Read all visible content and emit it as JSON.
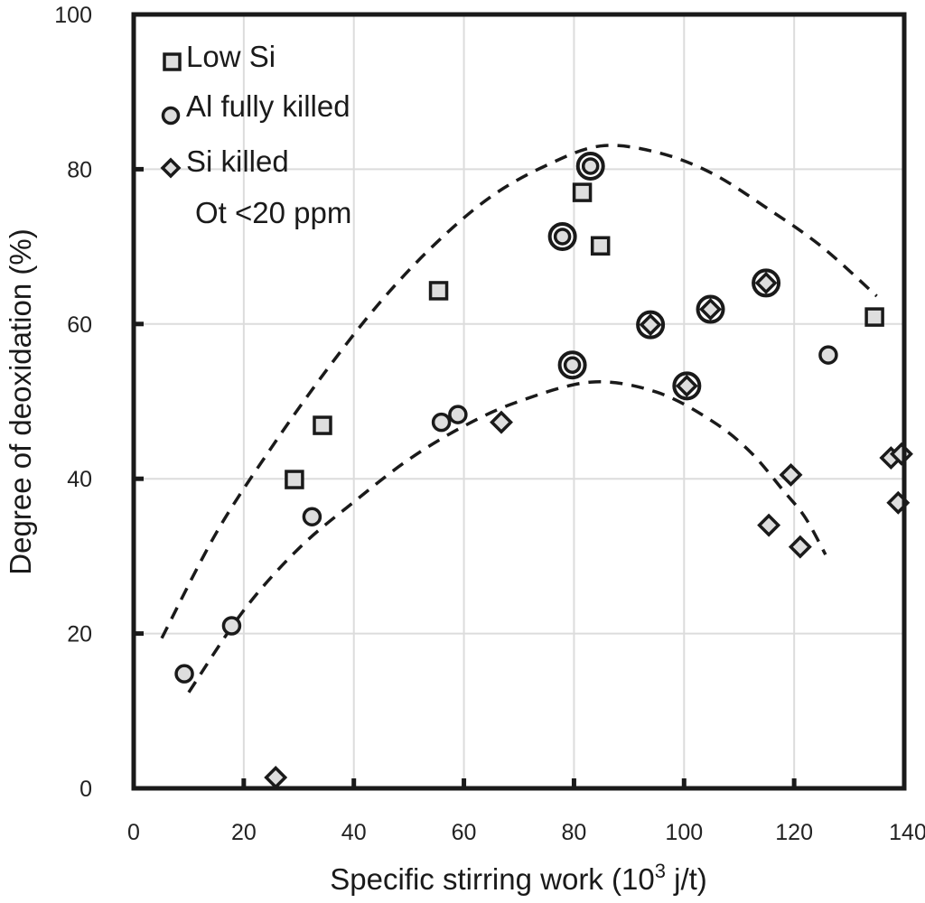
{
  "chart_data": {
    "type": "scatter",
    "title": "",
    "xlabel": "Specific stirring work (10³ j/t)",
    "xlabel_main": "Specific stirring work (10",
    "xlabel_sup": "3",
    "xlabel_tail": " j/t)",
    "ylabel": "Degree of deoxidation (%)",
    "xlim": [
      0,
      140
    ],
    "ylim": [
      0,
      100
    ],
    "x_ticks": [
      0,
      20,
      40,
      60,
      80,
      100,
      120,
      140
    ],
    "x_tick_labels": [
      "0",
      "20",
      "40",
      "60",
      "80",
      "100",
      "120",
      "140"
    ],
    "y_ticks": [
      0,
      20,
      40,
      60,
      80,
      100
    ],
    "y_tick_labels": [
      "0",
      "20",
      "40",
      "60",
      "80",
      "100"
    ],
    "grid": true,
    "legend_position": "top-left",
    "annotation": "Ot <20 ppm",
    "series": [
      {
        "name": "Low Si",
        "marker": "square",
        "points": [
          {
            "x": 29.2,
            "y": 39.9
          },
          {
            "x": 34.3,
            "y": 46.9
          },
          {
            "x": 55.4,
            "y": 64.3
          },
          {
            "x": 81.5,
            "y": 77.0
          },
          {
            "x": 84.8,
            "y": 70.1
          },
          {
            "x": 134.6,
            "y": 60.9
          }
        ]
      },
      {
        "name": "Al fully killed",
        "marker": "circle",
        "points": [
          {
            "x": 9.2,
            "y": 14.8
          },
          {
            "x": 17.8,
            "y": 21.0
          },
          {
            "x": 32.4,
            "y": 35.1
          },
          {
            "x": 55.9,
            "y": 47.3
          },
          {
            "x": 58.9,
            "y": 48.3
          },
          {
            "x": 77.9,
            "y": 71.3,
            "ringed": true
          },
          {
            "x": 79.7,
            "y": 54.7,
            "ringed": true
          },
          {
            "x": 83.0,
            "y": 80.4,
            "ringed": true
          },
          {
            "x": 126.2,
            "y": 56.0
          }
        ]
      },
      {
        "name": "Si killed",
        "marker": "diamond",
        "points": [
          {
            "x": 25.8,
            "y": 1.4
          },
          {
            "x": 66.8,
            "y": 47.3
          },
          {
            "x": 93.9,
            "y": 59.9,
            "ringed": true
          },
          {
            "x": 100.5,
            "y": 52.0,
            "ringed": true
          },
          {
            "x": 104.8,
            "y": 61.9,
            "ringed": true
          },
          {
            "x": 114.9,
            "y": 65.3,
            "ringed": true
          },
          {
            "x": 115.4,
            "y": 34.0
          },
          {
            "x": 119.4,
            "y": 40.5
          },
          {
            "x": 121.1,
            "y": 31.2
          },
          {
            "x": 137.6,
            "y": 42.7
          },
          {
            "x": 138.9,
            "y": 36.9
          },
          {
            "x": 139.5,
            "y": 43.2
          }
        ]
      }
    ],
    "fit_curves": [
      {
        "name": "upper-envelope",
        "style": "dashed",
        "points": [
          {
            "x": 5.1,
            "y": 19.4
          },
          {
            "x": 15,
            "y": 33
          },
          {
            "x": 25,
            "y": 44
          },
          {
            "x": 35,
            "y": 54
          },
          {
            "x": 45,
            "y": 63
          },
          {
            "x": 55,
            "y": 70.5
          },
          {
            "x": 65,
            "y": 76.5
          },
          {
            "x": 75,
            "y": 80.5
          },
          {
            "x": 84.8,
            "y": 83.0
          },
          {
            "x": 95,
            "y": 82.2
          },
          {
            "x": 105,
            "y": 79.5
          },
          {
            "x": 115,
            "y": 75
          },
          {
            "x": 125,
            "y": 70
          },
          {
            "x": 135,
            "y": 63.6
          }
        ]
      },
      {
        "name": "lower-envelope",
        "style": "dashed",
        "points": [
          {
            "x": 10.0,
            "y": 12.4
          },
          {
            "x": 20,
            "y": 23
          },
          {
            "x": 30,
            "y": 31
          },
          {
            "x": 40,
            "y": 37
          },
          {
            "x": 50,
            "y": 42.5
          },
          {
            "x": 60,
            "y": 46.8
          },
          {
            "x": 70,
            "y": 50
          },
          {
            "x": 83.2,
            "y": 52.5
          },
          {
            "x": 95,
            "y": 51.2
          },
          {
            "x": 105,
            "y": 47.5
          },
          {
            "x": 112,
            "y": 43.5
          },
          {
            "x": 118,
            "y": 38.5
          },
          {
            "x": 122,
            "y": 35
          },
          {
            "x": 125.7,
            "y": 30.2
          }
        ]
      }
    ]
  }
}
